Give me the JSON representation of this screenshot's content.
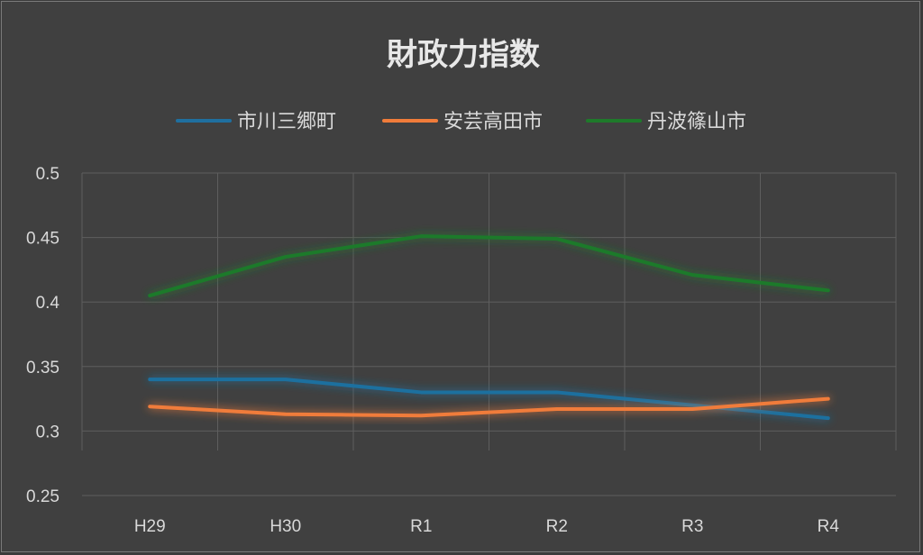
{
  "chart_data": {
    "type": "line",
    "title": "財政力指数",
    "categories": [
      "H29",
      "H30",
      "R1",
      "R2",
      "R3",
      "R4"
    ],
    "ylim": [
      0.25,
      0.5
    ],
    "yticks": [
      "0.5",
      "0.45",
      "0.4",
      "0.35",
      "0.3",
      "0.25"
    ],
    "grid": true,
    "legend_position": "top",
    "series": [
      {
        "name": "市川三郷町",
        "color": "#1f6f9f",
        "values": [
          0.34,
          0.34,
          0.33,
          0.33,
          0.32,
          0.31
        ]
      },
      {
        "name": "安芸高田市",
        "color": "#f07c3a",
        "values": [
          0.319,
          0.313,
          0.312,
          0.317,
          0.317,
          0.325
        ]
      },
      {
        "name": "丹波篠山市",
        "color": "#1e7a2a",
        "values": [
          0.405,
          0.435,
          0.451,
          0.449,
          0.421,
          0.409
        ]
      }
    ]
  }
}
